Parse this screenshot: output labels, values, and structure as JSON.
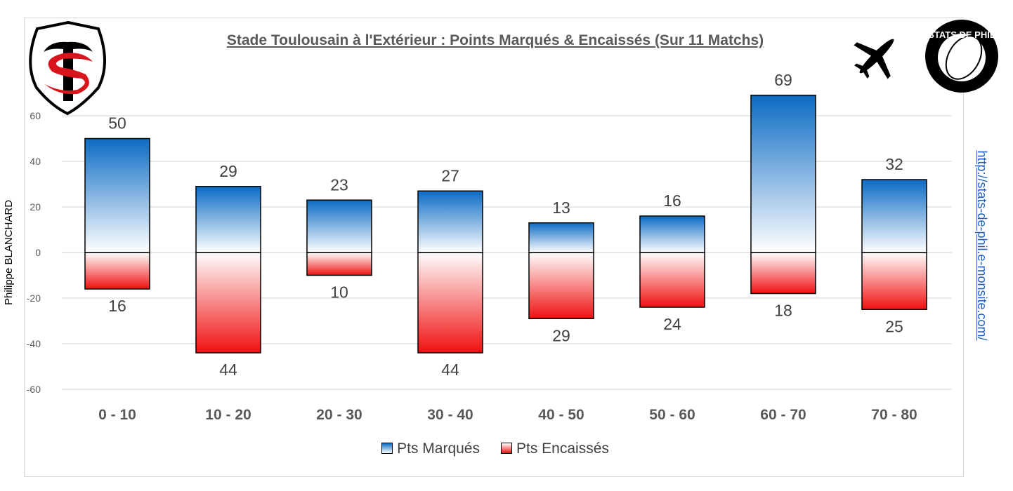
{
  "chart_data": {
    "type": "bar",
    "title": "Stade Toulousain à l'Extérieur : Points Marqués & Encaissés (Sur 11 Matchs)",
    "ylabel": "Philippe BLANCHARD",
    "categories": [
      "0 - 10",
      "10 - 20",
      "20 - 30",
      "30 - 40",
      "40 - 50",
      "50 - 60",
      "60 - 70",
      "70 - 80"
    ],
    "series": [
      {
        "name": "Pts Marqués",
        "values": [
          50,
          29,
          23,
          27,
          13,
          16,
          69,
          32
        ],
        "labels": [
          "50",
          "29",
          "23",
          "27",
          "13",
          "16",
          "69",
          "32"
        ],
        "color": "#0b6bc4"
      },
      {
        "name": "Pts Encaissés",
        "values": [
          -16,
          -44,
          -10,
          -44,
          -29,
          -24,
          -18,
          -25
        ],
        "labels": [
          "16",
          "44",
          "10",
          "44",
          "29",
          "24",
          "18",
          "25"
        ],
        "color": "#f01010"
      }
    ],
    "ylim": [
      -60,
      70
    ],
    "yticks": [
      -60,
      -40,
      -20,
      0,
      20,
      40,
      60
    ],
    "grid": true,
    "legend": "bottom"
  },
  "watermark_url": "http://stats-de-phil.e-monsite.com/",
  "logos": {
    "club": "Stade Toulousain ST",
    "stamp": "STATS DE PHIL",
    "icon": "airplane-icon"
  }
}
